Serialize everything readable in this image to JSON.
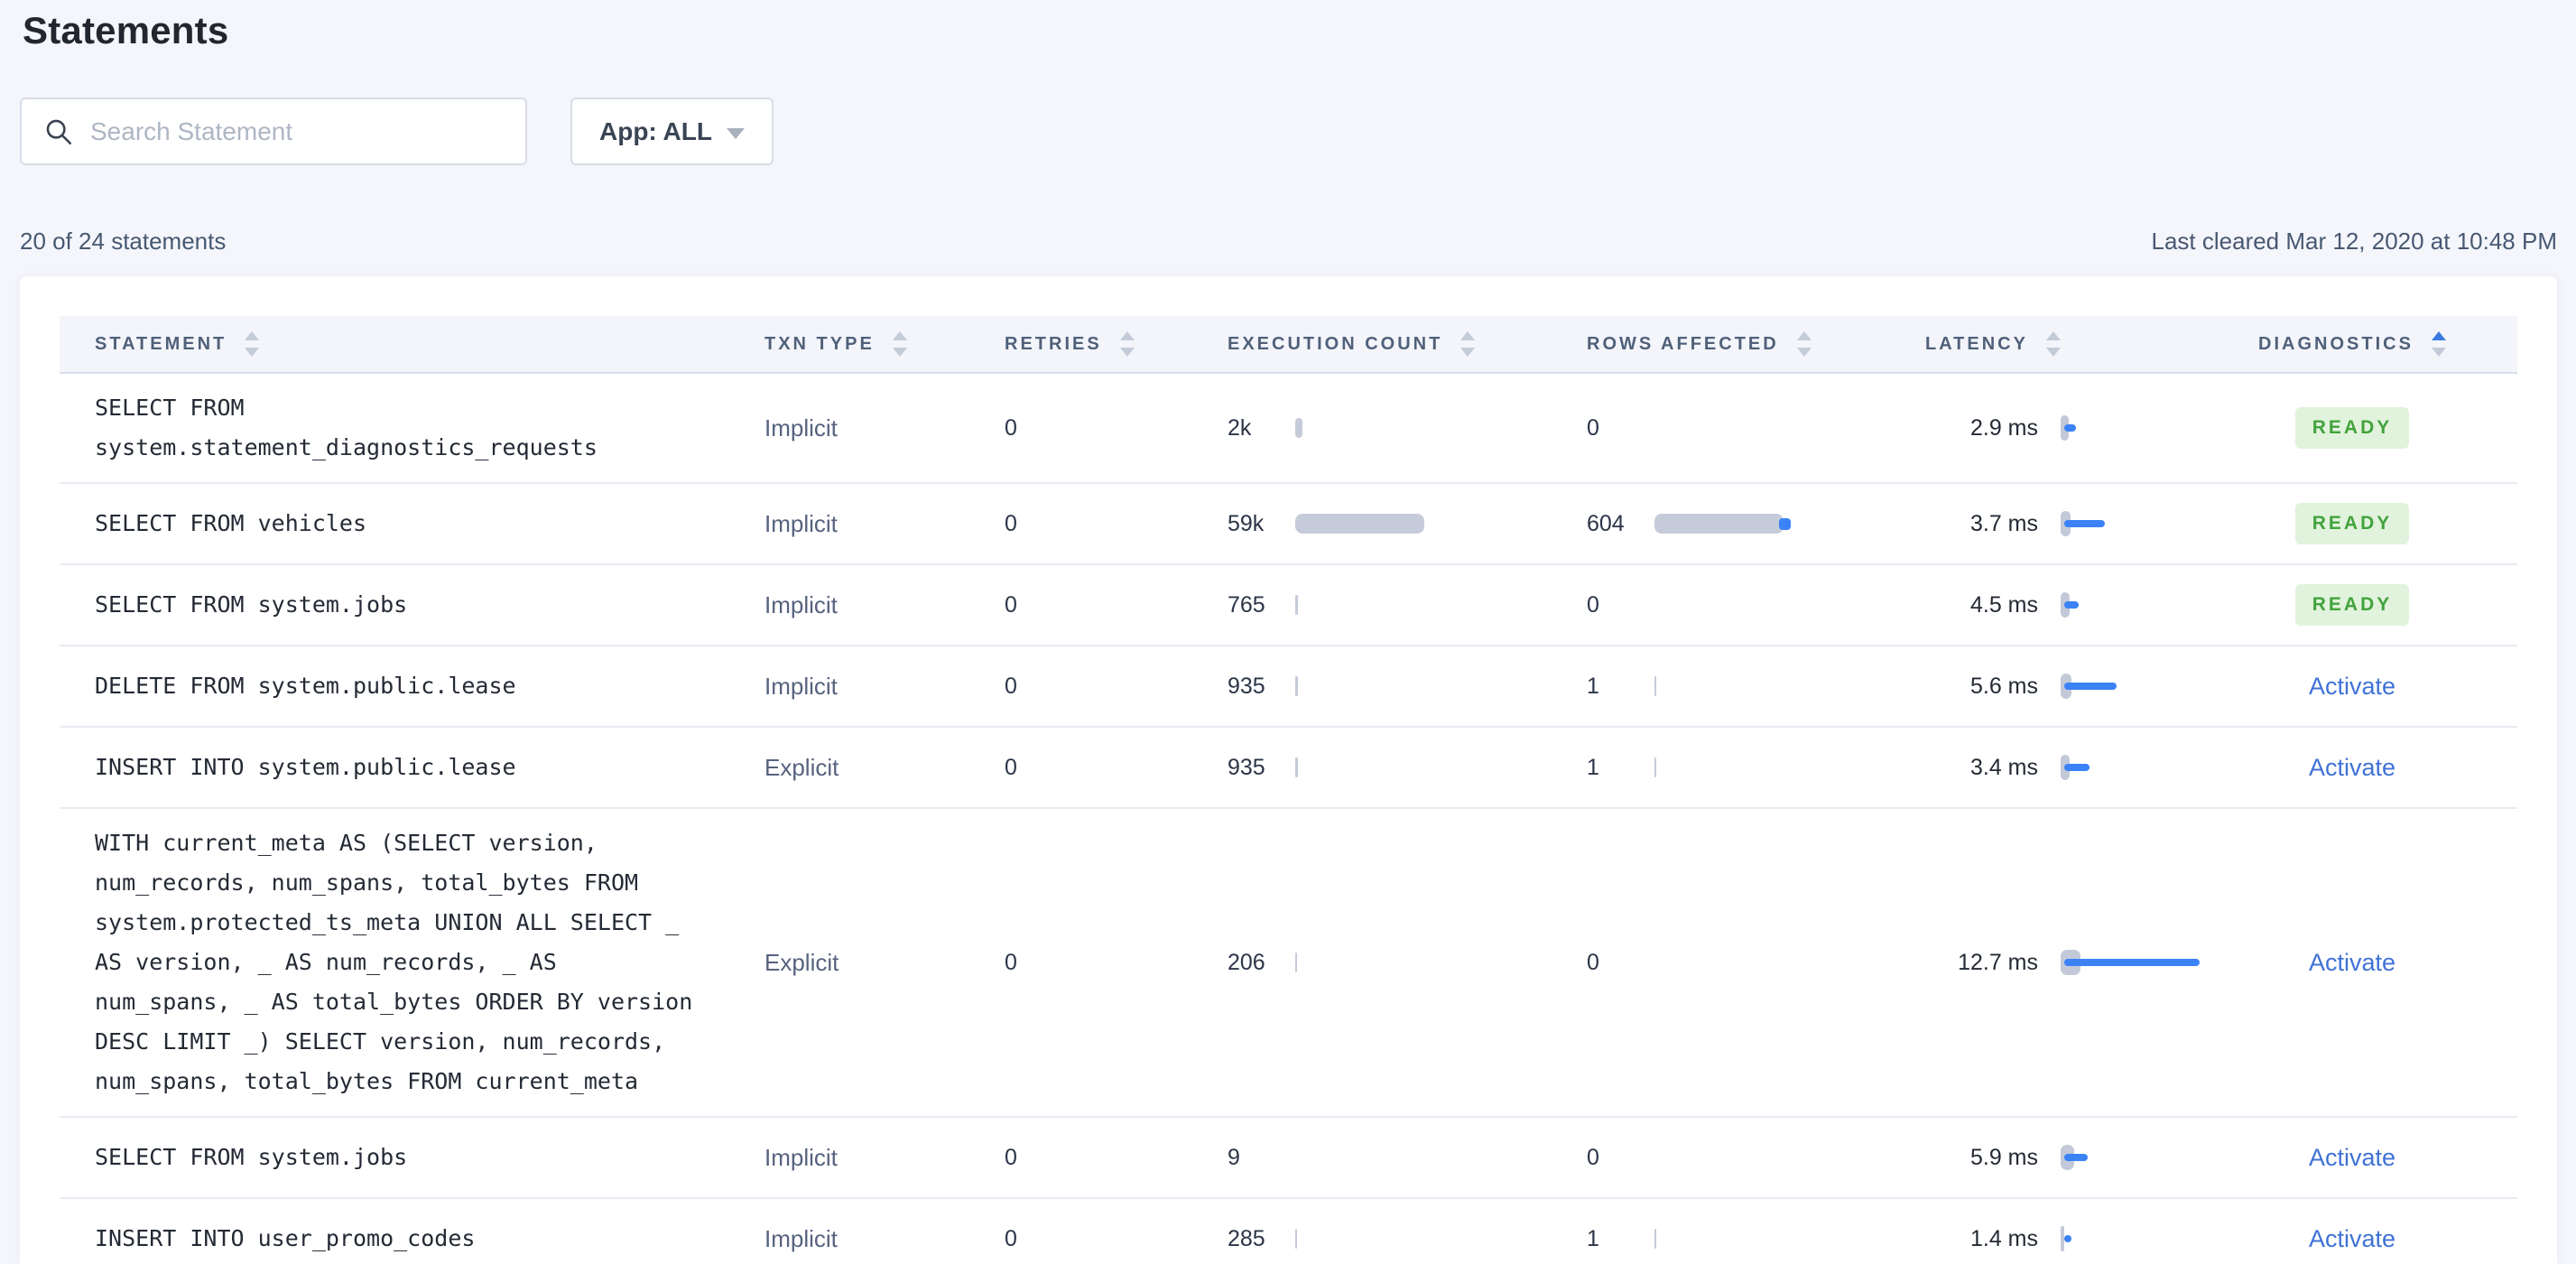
{
  "page": {
    "title": "Statements",
    "summary": "20 of 24 statements",
    "last_cleared": "Last cleared Mar 12, 2020 at 10:48 PM"
  },
  "controls": {
    "search_placeholder": "Search Statement",
    "app_filter_label": "App: ALL"
  },
  "colors": {
    "accent_blue": "#3B82F6",
    "bar_gray": "#C6CBDA",
    "ready_green": "#43A33E",
    "ready_bg": "#E1F3DC",
    "link_blue": "#3F72D6",
    "header_text": "#50607A",
    "sort_active": "#3B7BE0"
  },
  "table": {
    "columns": [
      {
        "label": "STATEMENT",
        "sorted": null
      },
      {
        "label": "TXN TYPE",
        "sorted": null
      },
      {
        "label": "RETRIES",
        "sorted": null
      },
      {
        "label": "EXECUTION COUNT",
        "sorted": null
      },
      {
        "label": "ROWS AFFECTED",
        "sorted": null
      },
      {
        "label": "LATENCY",
        "sorted": null
      },
      {
        "label": "DIAGNOSTICS",
        "sorted": "asc"
      }
    ],
    "rows": [
      {
        "statement": "SELECT FROM\nsystem.statement_diagnostics_requests",
        "txn_type": "Implicit",
        "retries": "0",
        "execution_count": "2k",
        "exec_bar_w": 8,
        "rows_affected": "0",
        "rows_bar_w": 0,
        "rows_bar_dot": false,
        "latency": "2.9 ms",
        "lat_pill_w": 9,
        "lat_bar_w": 13,
        "diagnostics": "READY",
        "diagnostics_type": "badge"
      },
      {
        "statement": "SELECT FROM vehicles",
        "txn_type": "Implicit",
        "retries": "0",
        "execution_count": "59k",
        "exec_bar_w": 143,
        "rows_affected": "604",
        "rows_bar_w": 143,
        "rows_bar_dot": true,
        "latency": "3.7 ms",
        "lat_pill_w": 11,
        "lat_bar_w": 45,
        "diagnostics": "READY",
        "diagnostics_type": "badge"
      },
      {
        "statement": "SELECT FROM system.jobs",
        "txn_type": "Implicit",
        "retries": "0",
        "execution_count": "765",
        "exec_bar_w": 3,
        "rows_affected": "0",
        "rows_bar_w": 0,
        "rows_bar_dot": false,
        "latency": "4.5 ms",
        "lat_pill_w": 10,
        "lat_bar_w": 16,
        "diagnostics": "READY",
        "diagnostics_type": "badge"
      },
      {
        "statement": "DELETE FROM system.public.lease",
        "txn_type": "Implicit",
        "retries": "0",
        "execution_count": "935",
        "exec_bar_w": 3,
        "rows_affected": "1",
        "rows_bar_w": 2,
        "rows_bar_dot": false,
        "latency": "5.6 ms",
        "lat_pill_w": 12,
        "lat_bar_w": 58,
        "diagnostics": "Activate",
        "diagnostics_type": "link"
      },
      {
        "statement": "INSERT INTO system.public.lease",
        "txn_type": "Explicit",
        "retries": "0",
        "execution_count": "935",
        "exec_bar_w": 3,
        "rows_affected": "1",
        "rows_bar_w": 2,
        "rows_bar_dot": false,
        "latency": "3.4 ms",
        "lat_pill_w": 10,
        "lat_bar_w": 28,
        "diagnostics": "Activate",
        "diagnostics_type": "link"
      },
      {
        "statement": "WITH current_meta AS (SELECT version,\nnum_records, num_spans, total_bytes FROM\nsystem.protected_ts_meta UNION ALL SELECT _\nAS version, _ AS num_records, _ AS\nnum_spans, _ AS total_bytes ORDER BY version\nDESC LIMIT _) SELECT version, num_records,\nnum_spans, total_bytes FROM current_meta",
        "txn_type": "Explicit",
        "retries": "0",
        "execution_count": "206",
        "exec_bar_w": 2,
        "rows_affected": "0",
        "rows_bar_w": 0,
        "rows_bar_dot": false,
        "latency": "12.7 ms",
        "lat_pill_w": 22,
        "lat_bar_w": 150,
        "diagnostics": "Activate",
        "diagnostics_type": "link"
      },
      {
        "statement": "SELECT FROM system.jobs",
        "txn_type": "Implicit",
        "retries": "0",
        "execution_count": "9",
        "exec_bar_w": 0,
        "rows_affected": "0",
        "rows_bar_w": 0,
        "rows_bar_dot": false,
        "latency": "5.9 ms",
        "lat_pill_w": 15,
        "lat_bar_w": 26,
        "diagnostics": "Activate",
        "diagnostics_type": "link"
      },
      {
        "statement": "INSERT INTO user_promo_codes",
        "txn_type": "Implicit",
        "retries": "0",
        "execution_count": "285",
        "exec_bar_w": 2,
        "rows_affected": "1",
        "rows_bar_w": 2,
        "rows_bar_dot": false,
        "latency": "1.4 ms",
        "lat_pill_w": 4,
        "lat_bar_w": 8,
        "diagnostics": "Activate",
        "diagnostics_type": "link"
      }
    ]
  }
}
